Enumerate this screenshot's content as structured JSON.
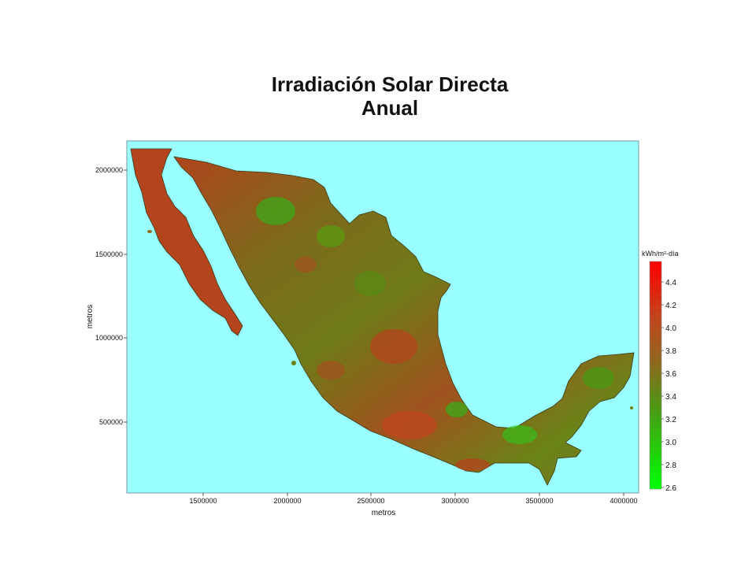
{
  "title": {
    "line1": "Irradiación Solar Directa",
    "line2": "Anual"
  },
  "map": {
    "background_color": "#99ffff",
    "x_axis": {
      "label": "metros",
      "ticks": [
        "1500000",
        "2000000",
        "2500000",
        "3000000",
        "3500000",
        "4000000"
      ]
    },
    "y_axis": {
      "label": "metros",
      "ticks": [
        "2000000",
        "1500000",
        "1000000",
        "500000"
      ]
    }
  },
  "legend": {
    "title": "kWh/m²-día",
    "ticks": [
      "4.4",
      "4.2",
      "4.0",
      "3.8",
      "3.6",
      "3.4",
      "3.2",
      "3.0",
      "2.8",
      "2.6"
    ],
    "colors": {
      "high": "#ff0000",
      "mid_high": "#c0461e",
      "mid": "#8c6a1e",
      "mid_low": "#4a9a14",
      "low": "#00ff00"
    }
  }
}
